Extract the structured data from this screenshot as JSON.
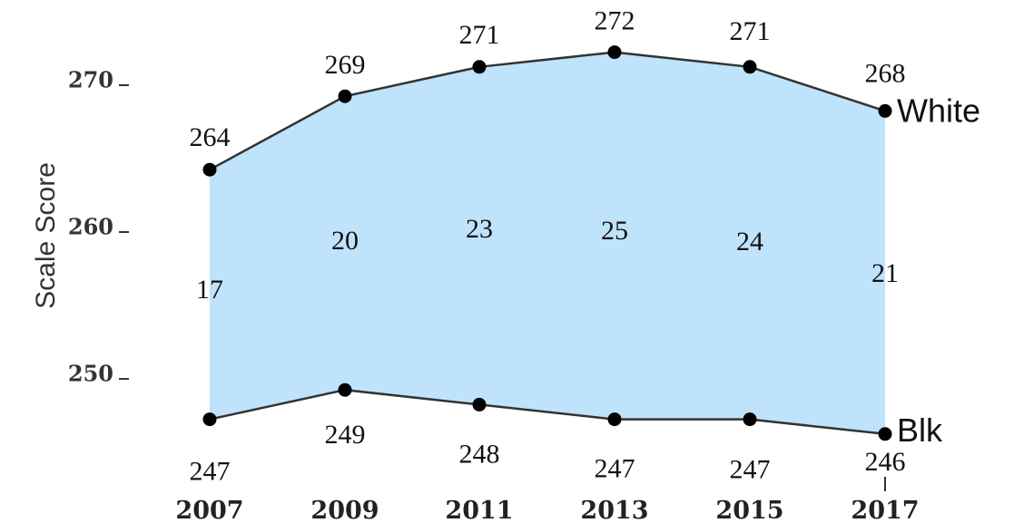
{
  "chart_data": {
    "type": "line",
    "ylabel": "Scale Score",
    "x": [
      "2007",
      "2009",
      "2011",
      "2013",
      "2015",
      "2017"
    ],
    "y_ticks": [
      250,
      260,
      270
    ],
    "series": [
      {
        "name": "White",
        "values": [
          264,
          269,
          271,
          272,
          271,
          268
        ]
      },
      {
        "name": "Blk",
        "values": [
          247,
          249,
          248,
          247,
          247,
          246
        ]
      }
    ],
    "gaps": [
      17,
      20,
      23,
      25,
      24,
      21
    ],
    "colors": {
      "fill": "#bfe3fb",
      "line": "#333333",
      "point": "#000000"
    }
  }
}
